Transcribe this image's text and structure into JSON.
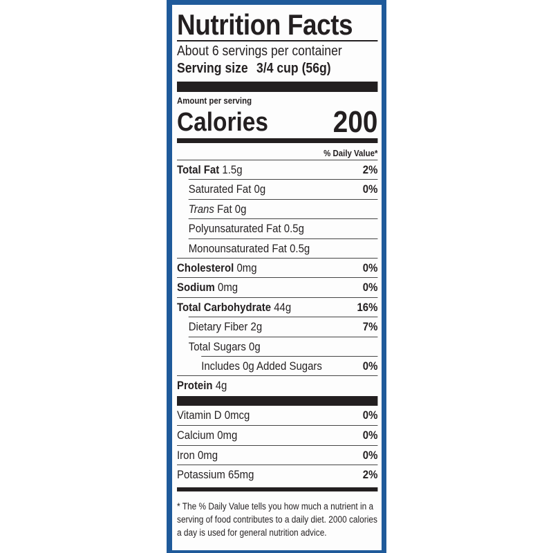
{
  "label": {
    "title": "Nutrition Facts",
    "servings_per_container": "About 6 servings per container",
    "serving_size_label": "Serving size",
    "serving_size_value": "3/4 cup (56g)",
    "amount_per_serving": "Amount per serving",
    "calories_label": "Calories",
    "calories_value": "200",
    "daily_value_header": "% Daily Value*",
    "nutrients": [
      {
        "name": "Total Fat",
        "amount": "1.5g",
        "dv": "2%",
        "bold": true,
        "indent": 0
      },
      {
        "name": "Saturated Fat",
        "amount": "0g",
        "dv": "0%",
        "bold": false,
        "indent": 1
      },
      {
        "name": "Trans",
        "suffix": "Fat",
        "amount": "0g",
        "dv": "",
        "bold": false,
        "indent": 1
      },
      {
        "name": "Polyunsaturated Fat",
        "amount": "0.5g",
        "dv": "",
        "bold": false,
        "indent": 1
      },
      {
        "name": "Monounsaturated Fat",
        "amount": "0.5g",
        "dv": "",
        "bold": false,
        "indent": 1
      },
      {
        "name": "Cholesterol",
        "amount": "0mg",
        "dv": "0%",
        "bold": true,
        "indent": 0
      },
      {
        "name": "Sodium",
        "amount": "0mg",
        "dv": "0%",
        "bold": true,
        "indent": 0
      },
      {
        "name": "Total Carbohydrate",
        "amount": "44g",
        "dv": "16%",
        "bold": true,
        "indent": 0
      },
      {
        "name": "Dietary Fiber",
        "amount": "2g",
        "dv": "7%",
        "bold": false,
        "indent": 1
      },
      {
        "name": "Total Sugars",
        "amount": "0g",
        "dv": "",
        "bold": false,
        "indent": 1
      },
      {
        "name": "Includes 0g Added Sugars",
        "amount": "",
        "dv": "0%",
        "bold": false,
        "indent": 2
      },
      {
        "name": "Protein",
        "amount": "4g",
        "dv": "",
        "bold": true,
        "indent": 0
      }
    ],
    "vitamins": [
      {
        "name": "Vitamin D",
        "amount": "0mcg",
        "dv": "0%"
      },
      {
        "name": "Calcium",
        "amount": "0mg",
        "dv": "0%"
      },
      {
        "name": "Iron",
        "amount": "0mg",
        "dv": "0%"
      },
      {
        "name": "Potassium",
        "amount": "65mg",
        "dv": "2%"
      }
    ],
    "footnote": "* The % Daily Value tells you how much a nutrient in a serving of food contributes to a daily diet. 2000 calories a day is used for general nutrition advice."
  },
  "colors": {
    "panel_blue": "#1f5a9a",
    "ink": "#231f20"
  }
}
